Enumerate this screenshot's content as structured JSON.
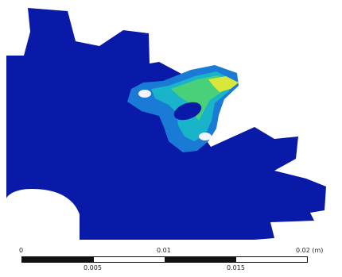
{
  "viewport": {
    "model": "gear-tooth-contour",
    "colors": {
      "background": "#ffffff",
      "body": "#0a1aa8",
      "contour_low": "#1a7bd6",
      "contour_mid": "#19b4c9",
      "contour_high": "#49d17a",
      "contour_peak": "#d9e63a",
      "hole": "#f5f5ff"
    }
  },
  "scale": {
    "top_labels": [
      "0",
      "0.01",
      "0.02 (m)"
    ],
    "bottom_labels": [
      "0.005",
      "0.015"
    ],
    "segments": [
      "dark",
      "light",
      "dark",
      "light"
    ]
  }
}
